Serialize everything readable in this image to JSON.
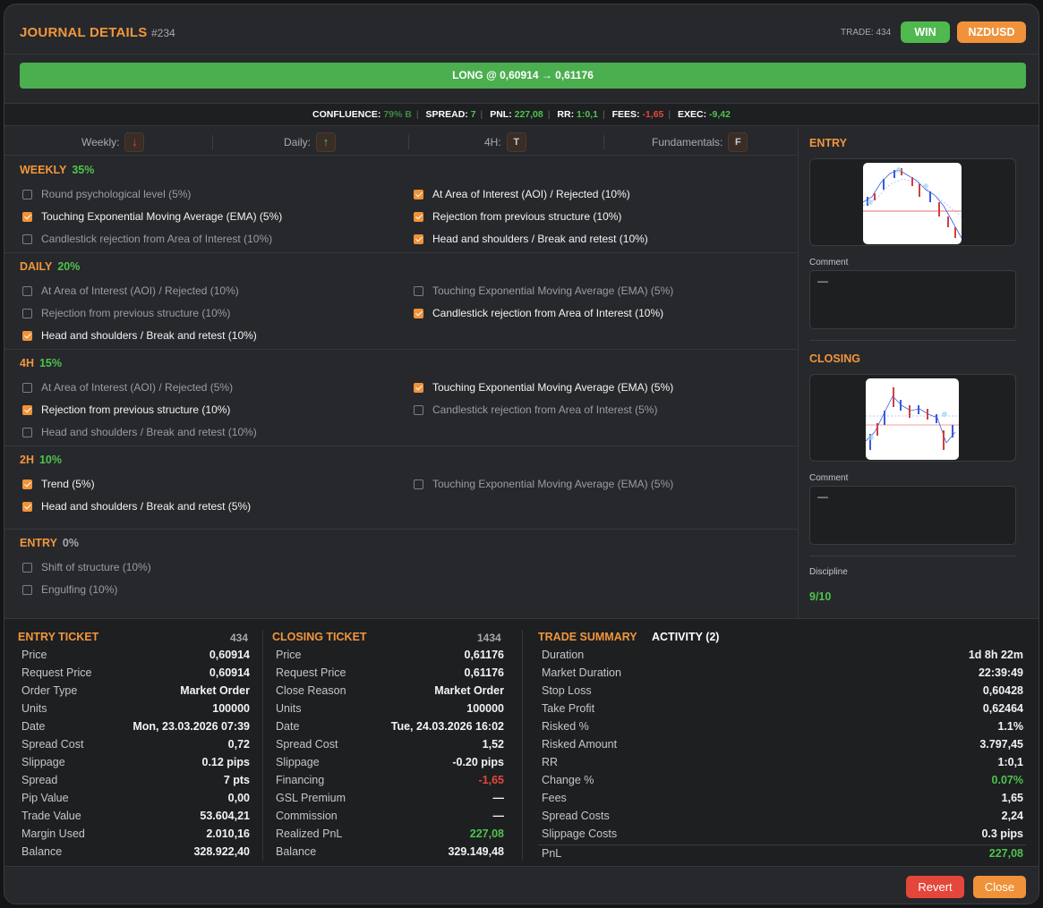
{
  "header": {
    "title": "JOURNAL DETAILS",
    "id": "#234",
    "trade_label": "TRADE: 434",
    "result_badge": "WIN",
    "pair_badge": "NZDUSD"
  },
  "direction_bar": "LONG @ 0,60914 → 0,61176",
  "stats": {
    "confluence_label": "CONFLUENCE:",
    "confluence_value": "79% B",
    "spread_label": "SPREAD:",
    "spread_value": "7",
    "pnl_label": "PNL:",
    "pnl_value": "227,08",
    "rr_label": "RR:",
    "rr_value": "1:0,1",
    "fees_label": "FEES:",
    "fees_value": "-1,65",
    "exec_label": "EXEC:",
    "exec_value": "-9,42"
  },
  "timeframes": [
    {
      "label": "Weekly:",
      "icon": "arrow-down-icon",
      "glyph": "↓",
      "color": "#e5463b"
    },
    {
      "label": "Daily:",
      "icon": "arrow-up-icon",
      "glyph": "↑",
      "color": "#4fc24f"
    },
    {
      "label": "4H:",
      "icon": "trend-icon",
      "glyph": "T",
      "color": "#c9cbce"
    },
    {
      "label": "Fundamentals:",
      "icon": "fundamentals-icon",
      "glyph": "F",
      "color": "#c9cbce"
    }
  ],
  "sections": {
    "weekly": {
      "title": "WEEKLY",
      "pct": "35%",
      "items": [
        {
          "label": "Round psychological level (5%)",
          "checked": false
        },
        {
          "label": "At Area of Interest (AOI) / Rejected (10%)",
          "checked": true
        },
        {
          "label": "Touching Exponential Moving Average (EMA) (5%)",
          "checked": true
        },
        {
          "label": "Rejection from previous structure (10%)",
          "checked": true
        },
        {
          "label": "Candlestick rejection from Area of Interest (10%)",
          "checked": false
        },
        {
          "label": "Head and shoulders / Break and retest (10%)",
          "checked": true
        }
      ]
    },
    "daily": {
      "title": "DAILY",
      "pct": "20%",
      "items": [
        {
          "label": "At Area of Interest (AOI) / Rejected (10%)",
          "checked": false
        },
        {
          "label": "Touching Exponential Moving Average (EMA) (5%)",
          "checked": false
        },
        {
          "label": "Rejection from previous structure (10%)",
          "checked": false
        },
        {
          "label": "Candlestick rejection from Area of Interest (10%)",
          "checked": true
        },
        {
          "label": "Head and shoulders / Break and retest (10%)",
          "checked": true
        }
      ]
    },
    "h4": {
      "title": "4H",
      "pct": "15%",
      "items": [
        {
          "label": "At Area of Interest (AOI) / Rejected (5%)",
          "checked": false
        },
        {
          "label": "Touching Exponential Moving Average (EMA) (5%)",
          "checked": true
        },
        {
          "label": "Rejection from previous structure (10%)",
          "checked": true
        },
        {
          "label": "Candlestick rejection from Area of Interest (5%)",
          "checked": false
        },
        {
          "label": "Head and shoulders / Break and retest (10%)",
          "checked": false
        }
      ]
    },
    "h2": {
      "title": "2H",
      "pct": "10%",
      "items": [
        {
          "label": "Trend (5%)",
          "checked": true
        },
        {
          "label": "Touching Exponential Moving Average (EMA) (5%)",
          "checked": false
        },
        {
          "label": "Head and shoulders / Break and retest (5%)",
          "checked": true
        }
      ]
    },
    "entry": {
      "title": "ENTRY",
      "pct": "0%",
      "items": [
        {
          "label": "Shift of structure (10%)",
          "checked": false
        },
        {
          "label": "Engulfing (10%)",
          "checked": false
        }
      ]
    }
  },
  "right_panel": {
    "entry_title": "ENTRY",
    "entry_comment_label": "Comment",
    "entry_comment": "—",
    "closing_title": "CLOSING",
    "closing_comment_label": "Comment",
    "closing_comment": "—",
    "discipline_label": "Discipline",
    "discipline_value": "9/10"
  },
  "entry_ticket": {
    "title": "ENTRY TICKET",
    "id": "434",
    "rows": [
      {
        "k": "Price",
        "v": "0,60914"
      },
      {
        "k": "Request Price",
        "v": "0,60914"
      },
      {
        "k": "Order Type",
        "v": "Market Order"
      },
      {
        "k": "Units",
        "v": "100000"
      },
      {
        "k": "Date",
        "v": "Mon, 23.03.2026 07:39"
      },
      {
        "k": "Spread Cost",
        "v": "0,72"
      },
      {
        "k": "Slippage",
        "v": "0.12 pips"
      },
      {
        "k": "Spread",
        "v": "7 pts"
      },
      {
        "k": "Pip Value",
        "v": "0,00"
      },
      {
        "k": "Trade Value",
        "v": "53.604,21"
      },
      {
        "k": "Margin Used",
        "v": "2.010,16"
      },
      {
        "k": "Balance",
        "v": "328.922,40"
      }
    ]
  },
  "closing_ticket": {
    "title": "CLOSING TICKET",
    "id": "1434",
    "rows": [
      {
        "k": "Price",
        "v": "0,61176"
      },
      {
        "k": "Request Price",
        "v": "0,61176"
      },
      {
        "k": "Close Reason",
        "v": "Market Order"
      },
      {
        "k": "Units",
        "v": "100000"
      },
      {
        "k": "Date",
        "v": "Tue, 24.03.2026 16:02"
      },
      {
        "k": "Spread Cost",
        "v": "1,52"
      },
      {
        "k": "Slippage",
        "v": "-0.20 pips"
      },
      {
        "k": "Financing",
        "v": "-1,65",
        "color": "#e5463b"
      },
      {
        "k": "GSL Premium",
        "v": "—"
      },
      {
        "k": "Commission",
        "v": "—"
      },
      {
        "k": "Realized PnL",
        "v": "227,08",
        "color": "#4fc24f"
      },
      {
        "k": "Balance",
        "v": "329.149,48"
      }
    ]
  },
  "trade_summary": {
    "title": "TRADE SUMMARY",
    "activity": "ACTIVITY (2)",
    "rows": [
      {
        "k": "Duration",
        "v": "1d 8h 22m"
      },
      {
        "k": "Market Duration",
        "v": "22:39:49"
      },
      {
        "k": "Stop Loss",
        "v": "0,60428"
      },
      {
        "k": "Take Profit",
        "v": "0,62464"
      },
      {
        "k": "Risked %",
        "v": "1.1%"
      },
      {
        "k": "Risked Amount",
        "v": "3.797,45"
      },
      {
        "k": "RR",
        "v": "1:0,1"
      },
      {
        "k": "Change %",
        "v": "0.07%",
        "color": "#4fc24f"
      },
      {
        "k": "Fees",
        "v": "1,65"
      },
      {
        "k": "Spread Costs",
        "v": "2,24"
      },
      {
        "k": "Slippage Costs",
        "v": "0.3 pips"
      }
    ],
    "pnl_label": "PnL",
    "pnl_value": "227,08"
  },
  "buttons": {
    "revert": "Revert",
    "close": "Close"
  },
  "colors": {
    "accent": "#f0923a",
    "win": "#4fb94f",
    "positive": "#4fc24f",
    "negative": "#e5463b"
  }
}
